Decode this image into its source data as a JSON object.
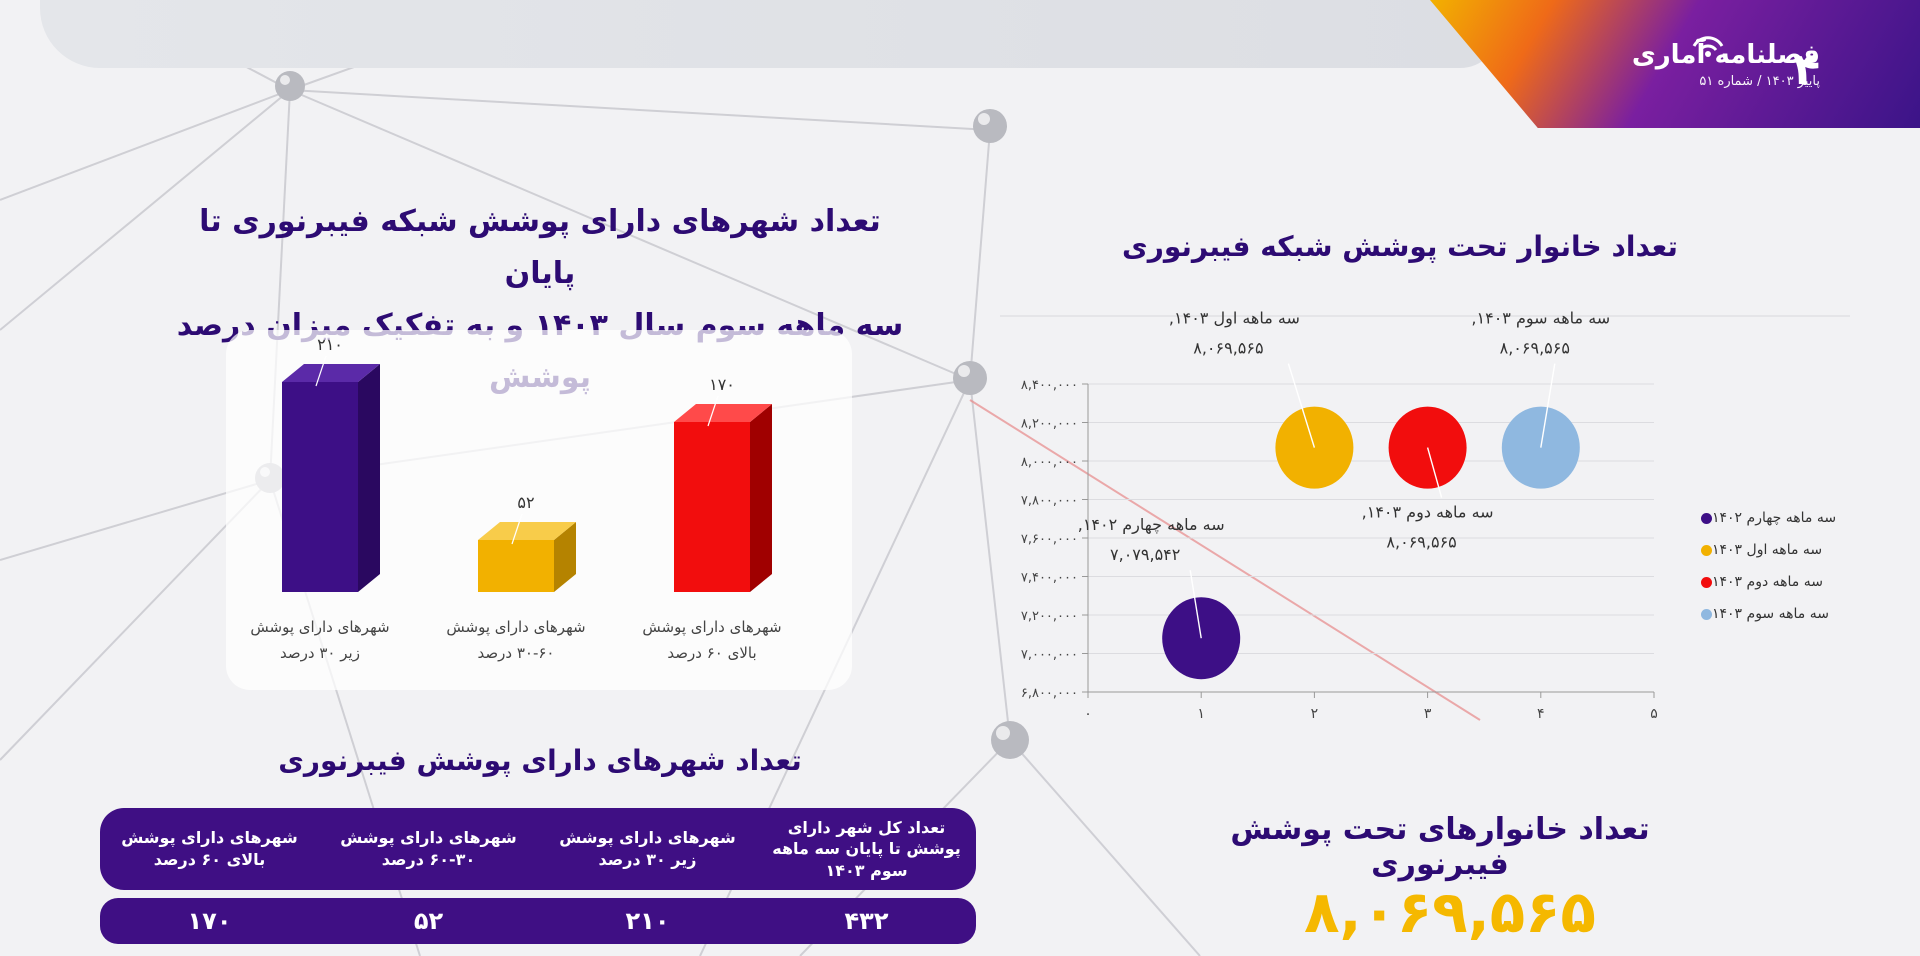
{
  "header": {
    "brand": "فصلنامه آماری",
    "issue": "پاییز ۱۴۰۳ / شماره ۵۱",
    "page_number": "۴"
  },
  "bar_title_line1": "تعداد شهرهای دارای پوشش شبکه فیبرنوری تا پایان",
  "bar_title_line2": "سه ماهه سوم سال ۱۴۰۳ و به تفکیک میزان درصد پوشش",
  "bubble_title": "تعداد خانوار تحت پوشش شبکه فیبرنوری",
  "table_title": "تعداد شهرهای دارای پوشش فیبرنوری",
  "households_title": "تعداد خانوارهای تحت پوشش فیبرنوری",
  "households_value": "۸,۰۶۹,۵۶۵",
  "table": {
    "headers": [
      "تعداد کل شهر دارای پوشش تا پایان سه ماهه سوم ۱۴۰۳",
      "شهرهای دارای پوشش زیر ۳۰ درصد",
      "شهرهای دارای پوشش ۳۰-۶۰ درصد",
      "شهرهای دارای پوشش بالای ۶۰ درصد"
    ],
    "values": [
      "۴۳۲",
      "۲۱۰",
      "۵۲",
      "۱۷۰"
    ]
  },
  "chart_data": [
    {
      "type": "bar",
      "title": "تعداد شهرهای دارای پوشش شبکه فیبرنوری تا پایان سه ماهه سوم سال ۱۴۰۳ و به تفکیک میزان درصد پوشش",
      "categories": [
        [
          "شهرهای دارای پوشش",
          "زیر ۳۰ درصد"
        ],
        [
          "شهرهای دارای پوشش",
          "۳۰-۶۰ درصد"
        ],
        [
          "شهرهای دارای پوشش",
          "بالای ۶۰ درصد"
        ]
      ],
      "values": [
        210,
        52,
        170
      ],
      "value_labels": [
        "۲۱۰",
        "۵۲",
        "۱۷۰"
      ],
      "colors": [
        "#3d0f86",
        "#f2b100",
        "#f20d0d"
      ],
      "side_colors": [
        "#2a0860",
        "#b58300",
        "#a00000"
      ],
      "top_colors": [
        "#5b2aa8",
        "#f8cc4a",
        "#ff4a4a"
      ]
    },
    {
      "type": "scatter",
      "title": "تعداد خانوار تحت پوشش شبکه فیبرنوری",
      "ylim": [
        6800000,
        8400000
      ],
      "xlim": [
        0,
        5
      ],
      "y_ticks": [
        "۶,۸۰۰,۰۰۰",
        "۷,۰۰۰,۰۰۰",
        "۷,۲۰۰,۰۰۰",
        "۷,۴۰۰,۰۰۰",
        "۷,۶۰۰,۰۰۰",
        "۷,۸۰۰,۰۰۰",
        "۸,۰۰۰,۰۰۰",
        "۸,۲۰۰,۰۰۰",
        "۸,۴۰۰,۰۰۰"
      ],
      "x_ticks": [
        "۰",
        "۱",
        "۲",
        "۳",
        "۴",
        "۵"
      ],
      "series": [
        {
          "name": "سه ماهه چهارم ۱۴۰۲",
          "x": 1,
          "y": 7079542,
          "label": [
            "سه ماهه چهارم ۱۴۰۲,",
            "۷,۰۷۹,۵۴۲"
          ],
          "color": "#3d0f86"
        },
        {
          "name": "سه ماهه اول ۱۴۰۳",
          "x": 2,
          "y": 8069565,
          "label": [
            "سه ماهه اول ۱۴۰۳,",
            "۸,۰۶۹,۵۶۵"
          ],
          "color": "#f2b100"
        },
        {
          "name": "سه ماهه دوم ۱۴۰۳",
          "x": 3,
          "y": 8069565,
          "label": [
            "سه ماهه دوم ۱۴۰۳,",
            "۸,۰۶۹,۵۶۵"
          ],
          "color": "#f20d0d"
        },
        {
          "name": "سه ماهه سوم ۱۴۰۳",
          "x": 4,
          "y": 8069565,
          "label": [
            "سه ماهه سوم ۱۴۰۳,",
            "۸,۰۶۹,۵۶۵"
          ],
          "color": "#8fb8e0"
        }
      ],
      "legend_position": "right",
      "grid": true
    }
  ]
}
